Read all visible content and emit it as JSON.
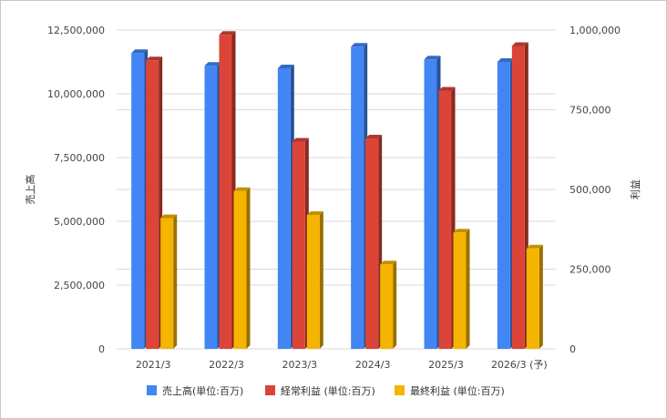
{
  "chart_data": {
    "type": "bar",
    "categories": [
      "2021/3",
      "2022/3",
      "2023/3",
      "2024/3",
      "2025/3",
      "2026/3 (予)"
    ],
    "series": [
      {
        "name": "売上高(単位:百万)",
        "axis": "left",
        "color": "#4285f4",
        "values": [
          11600000,
          11100000,
          11000000,
          11850000,
          11350000,
          11250000
        ]
      },
      {
        "name": "経常利益 (単位:百万)",
        "axis": "right",
        "color": "#db4437",
        "values": [
          905000,
          985000,
          650000,
          660000,
          810000,
          950000
        ]
      },
      {
        "name": "最終利益 (単位:百万)",
        "axis": "right",
        "color": "#f4b400",
        "values": [
          410000,
          495000,
          420000,
          265000,
          365000,
          315000
        ]
      }
    ],
    "ylabel": "売上高",
    "y2label": "利益",
    "ylim": [
      0,
      12500000
    ],
    "y2lim": [
      0,
      1000000
    ],
    "yticks": [
      "0",
      "2,500,000",
      "5,000,000",
      "7,500,000",
      "10,000,000",
      "12,500,000"
    ],
    "y2ticks": [
      "0",
      "250,000",
      "500,000",
      "750,000",
      "1,000,000"
    ],
    "grid": true,
    "legend": "bottom",
    "style": "3d-bars"
  }
}
